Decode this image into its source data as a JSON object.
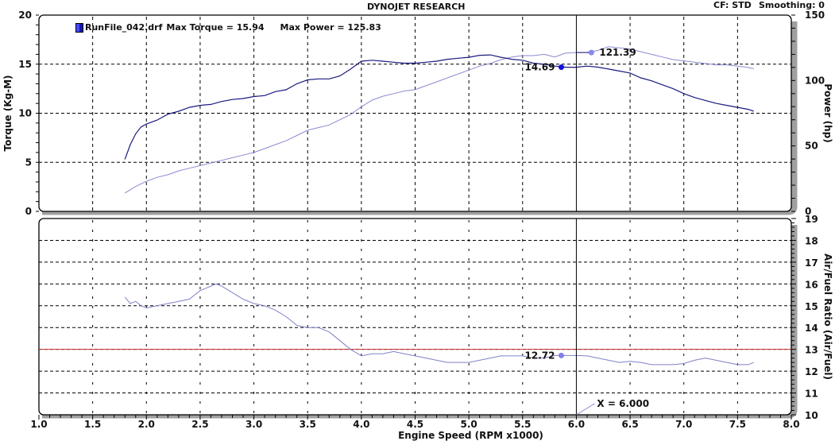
{
  "header": {
    "title": "DYNOJET RESEARCH",
    "cf": "CF: STD",
    "smoothing": "Smoothing: 0"
  },
  "legend": {
    "run_file": "RunFile_042.drf",
    "max_torque_label": "Max Torque = 15.94",
    "max_power_label": "Max Power = 125.83",
    "swatch_color": "#2a2aff"
  },
  "cursor": {
    "x_label": "X = 6.000",
    "x_value": 6.0,
    "torque_readout": "14.69",
    "power_readout": "121.39",
    "afr_readout": "12.72"
  },
  "colors": {
    "torque": "#1a1a80",
    "power": "#8a8ad0",
    "afr": "#8080c8",
    "afr_target": "#c83232",
    "grid": "#000000",
    "shadow": "#a0a0a0",
    "torque_marker": "#1010e0",
    "power_marker": "#8888ee",
    "afr_marker": "#8080e8"
  },
  "chart_data": [
    {
      "type": "line",
      "title": "DYNOJET RESEARCH",
      "xlabel": "Engine Speed (RPM x1000)",
      "ylabel": "Torque (Kg-M)",
      "y2label": "Power (hp)",
      "xlim": [
        1.0,
        8.0
      ],
      "ylim": [
        0,
        20
      ],
      "y2lim": [
        0,
        150
      ],
      "xticks": [
        "1.0",
        "1.5",
        "2.0",
        "2.5",
        "3.0",
        "3.5",
        "4.0",
        "4.5",
        "5.0",
        "5.5",
        "6.0",
        "6.5",
        "7.0",
        "7.5",
        "8.0"
      ],
      "yticks": [
        "0",
        "5",
        "10",
        "15",
        "20"
      ],
      "y2ticks": [
        "0",
        "50",
        "100",
        "150"
      ],
      "grid": true,
      "legend": [
        "RunFile_042.drf Max Torque = 15.94   Max Power = 125.83"
      ],
      "series": [
        {
          "name": "Torque (Kg-M)",
          "axis": "left",
          "x": [
            1.8,
            1.85,
            1.9,
            1.95,
            2.0,
            2.1,
            2.2,
            2.3,
            2.4,
            2.5,
            2.6,
            2.7,
            2.8,
            2.9,
            3.0,
            3.1,
            3.2,
            3.3,
            3.4,
            3.5,
            3.6,
            3.7,
            3.8,
            3.9,
            4.0,
            4.1,
            4.2,
            4.3,
            4.4,
            4.5,
            4.6,
            4.7,
            4.8,
            4.9,
            5.0,
            5.1,
            5.2,
            5.3,
            5.4,
            5.5,
            5.6,
            5.7,
            5.8,
            5.9,
            6.0,
            6.1,
            6.2,
            6.3,
            6.4,
            6.5,
            6.6,
            6.7,
            6.8,
            6.9,
            7.0,
            7.1,
            7.2,
            7.3,
            7.4,
            7.5,
            7.6,
            7.65
          ],
          "values": [
            5.3,
            6.8,
            7.9,
            8.6,
            8.9,
            9.3,
            9.9,
            10.2,
            10.6,
            10.8,
            10.9,
            11.2,
            11.4,
            11.5,
            11.7,
            11.8,
            12.2,
            12.4,
            13.0,
            13.4,
            13.5,
            13.5,
            13.8,
            14.5,
            15.3,
            15.4,
            15.3,
            15.2,
            15.1,
            15.1,
            15.2,
            15.3,
            15.5,
            15.6,
            15.7,
            15.9,
            15.94,
            15.7,
            15.5,
            15.4,
            15.1,
            15.0,
            14.8,
            14.7,
            14.69,
            14.8,
            14.7,
            14.5,
            14.3,
            14.1,
            13.6,
            13.3,
            12.9,
            12.5,
            12.0,
            11.6,
            11.3,
            11.0,
            10.8,
            10.6,
            10.4,
            10.2
          ]
        },
        {
          "name": "Power (hp)",
          "axis": "right",
          "x": [
            1.8,
            1.9,
            2.0,
            2.1,
            2.2,
            2.3,
            2.4,
            2.5,
            2.6,
            2.7,
            2.8,
            2.9,
            3.0,
            3.1,
            3.2,
            3.3,
            3.4,
            3.5,
            3.6,
            3.7,
            3.8,
            3.9,
            4.0,
            4.1,
            4.2,
            4.3,
            4.4,
            4.5,
            4.6,
            4.7,
            4.8,
            4.9,
            5.0,
            5.1,
            5.2,
            5.3,
            5.4,
            5.5,
            5.6,
            5.7,
            5.8,
            5.9,
            6.0,
            6.1,
            6.2,
            6.3,
            6.4,
            6.5,
            6.6,
            6.7,
            6.8,
            6.9,
            7.0,
            7.1,
            7.2,
            7.3,
            7.4,
            7.5,
            7.6,
            7.65
          ],
          "values": [
            14,
            19,
            23,
            26,
            28,
            31,
            33,
            35,
            37,
            39,
            41,
            43,
            45,
            48,
            51,
            54,
            58,
            62,
            64,
            66,
            70,
            74,
            80,
            85,
            88,
            90,
            92,
            93,
            96,
            99,
            102,
            105,
            108,
            111,
            113,
            116,
            118,
            119,
            119,
            120,
            118,
            121,
            121.39,
            121.5,
            123,
            125.83,
            125,
            124,
            122,
            120,
            118,
            116,
            115,
            114,
            113,
            112,
            112,
            111,
            110,
            109
          ]
        },
        {
          "type": "line",
          "name": "Air/Fuel Ratio (Air/Fuel)",
          "axis": "right",
          "ylim": [
            10,
            19
          ],
          "yticks": [
            "10",
            "11",
            "12",
            "13",
            "14",
            "15",
            "16",
            "17",
            "18",
            "19"
          ],
          "x": [
            1.8,
            1.85,
            1.9,
            1.95,
            2.0,
            2.1,
            2.2,
            2.3,
            2.4,
            2.5,
            2.6,
            2.65,
            2.7,
            2.8,
            2.9,
            3.0,
            3.1,
            3.2,
            3.3,
            3.4,
            3.5,
            3.6,
            3.7,
            3.8,
            3.9,
            4.0,
            4.1,
            4.2,
            4.3,
            4.4,
            4.5,
            4.6,
            4.7,
            4.8,
            4.9,
            5.0,
            5.1,
            5.2,
            5.3,
            5.4,
            5.5,
            5.6,
            5.7,
            5.8,
            5.9,
            6.0,
            6.1,
            6.2,
            6.3,
            6.4,
            6.5,
            6.6,
            6.7,
            6.8,
            6.9,
            7.0,
            7.1,
            7.2,
            7.3,
            7.4,
            7.5,
            7.6,
            7.65
          ],
          "values": [
            15.4,
            15.1,
            15.2,
            15.0,
            14.9,
            15.0,
            15.1,
            15.2,
            15.3,
            15.7,
            15.9,
            16.0,
            15.9,
            15.6,
            15.3,
            15.1,
            15.0,
            14.8,
            14.5,
            14.1,
            14.0,
            14.0,
            13.8,
            13.4,
            13.0,
            12.7,
            12.8,
            12.8,
            12.9,
            12.8,
            12.7,
            12.6,
            12.5,
            12.4,
            12.4,
            12.4,
            12.5,
            12.6,
            12.7,
            12.7,
            12.7,
            12.6,
            12.6,
            12.72,
            12.72,
            12.72,
            12.7,
            12.6,
            12.5,
            12.4,
            12.45,
            12.4,
            12.3,
            12.3,
            12.3,
            12.35,
            12.5,
            12.6,
            12.5,
            12.4,
            12.3,
            12.3,
            12.4
          ]
        },
        {
          "name": "AFR Target",
          "axis": "right",
          "constant": 13.0
        }
      ]
    }
  ]
}
